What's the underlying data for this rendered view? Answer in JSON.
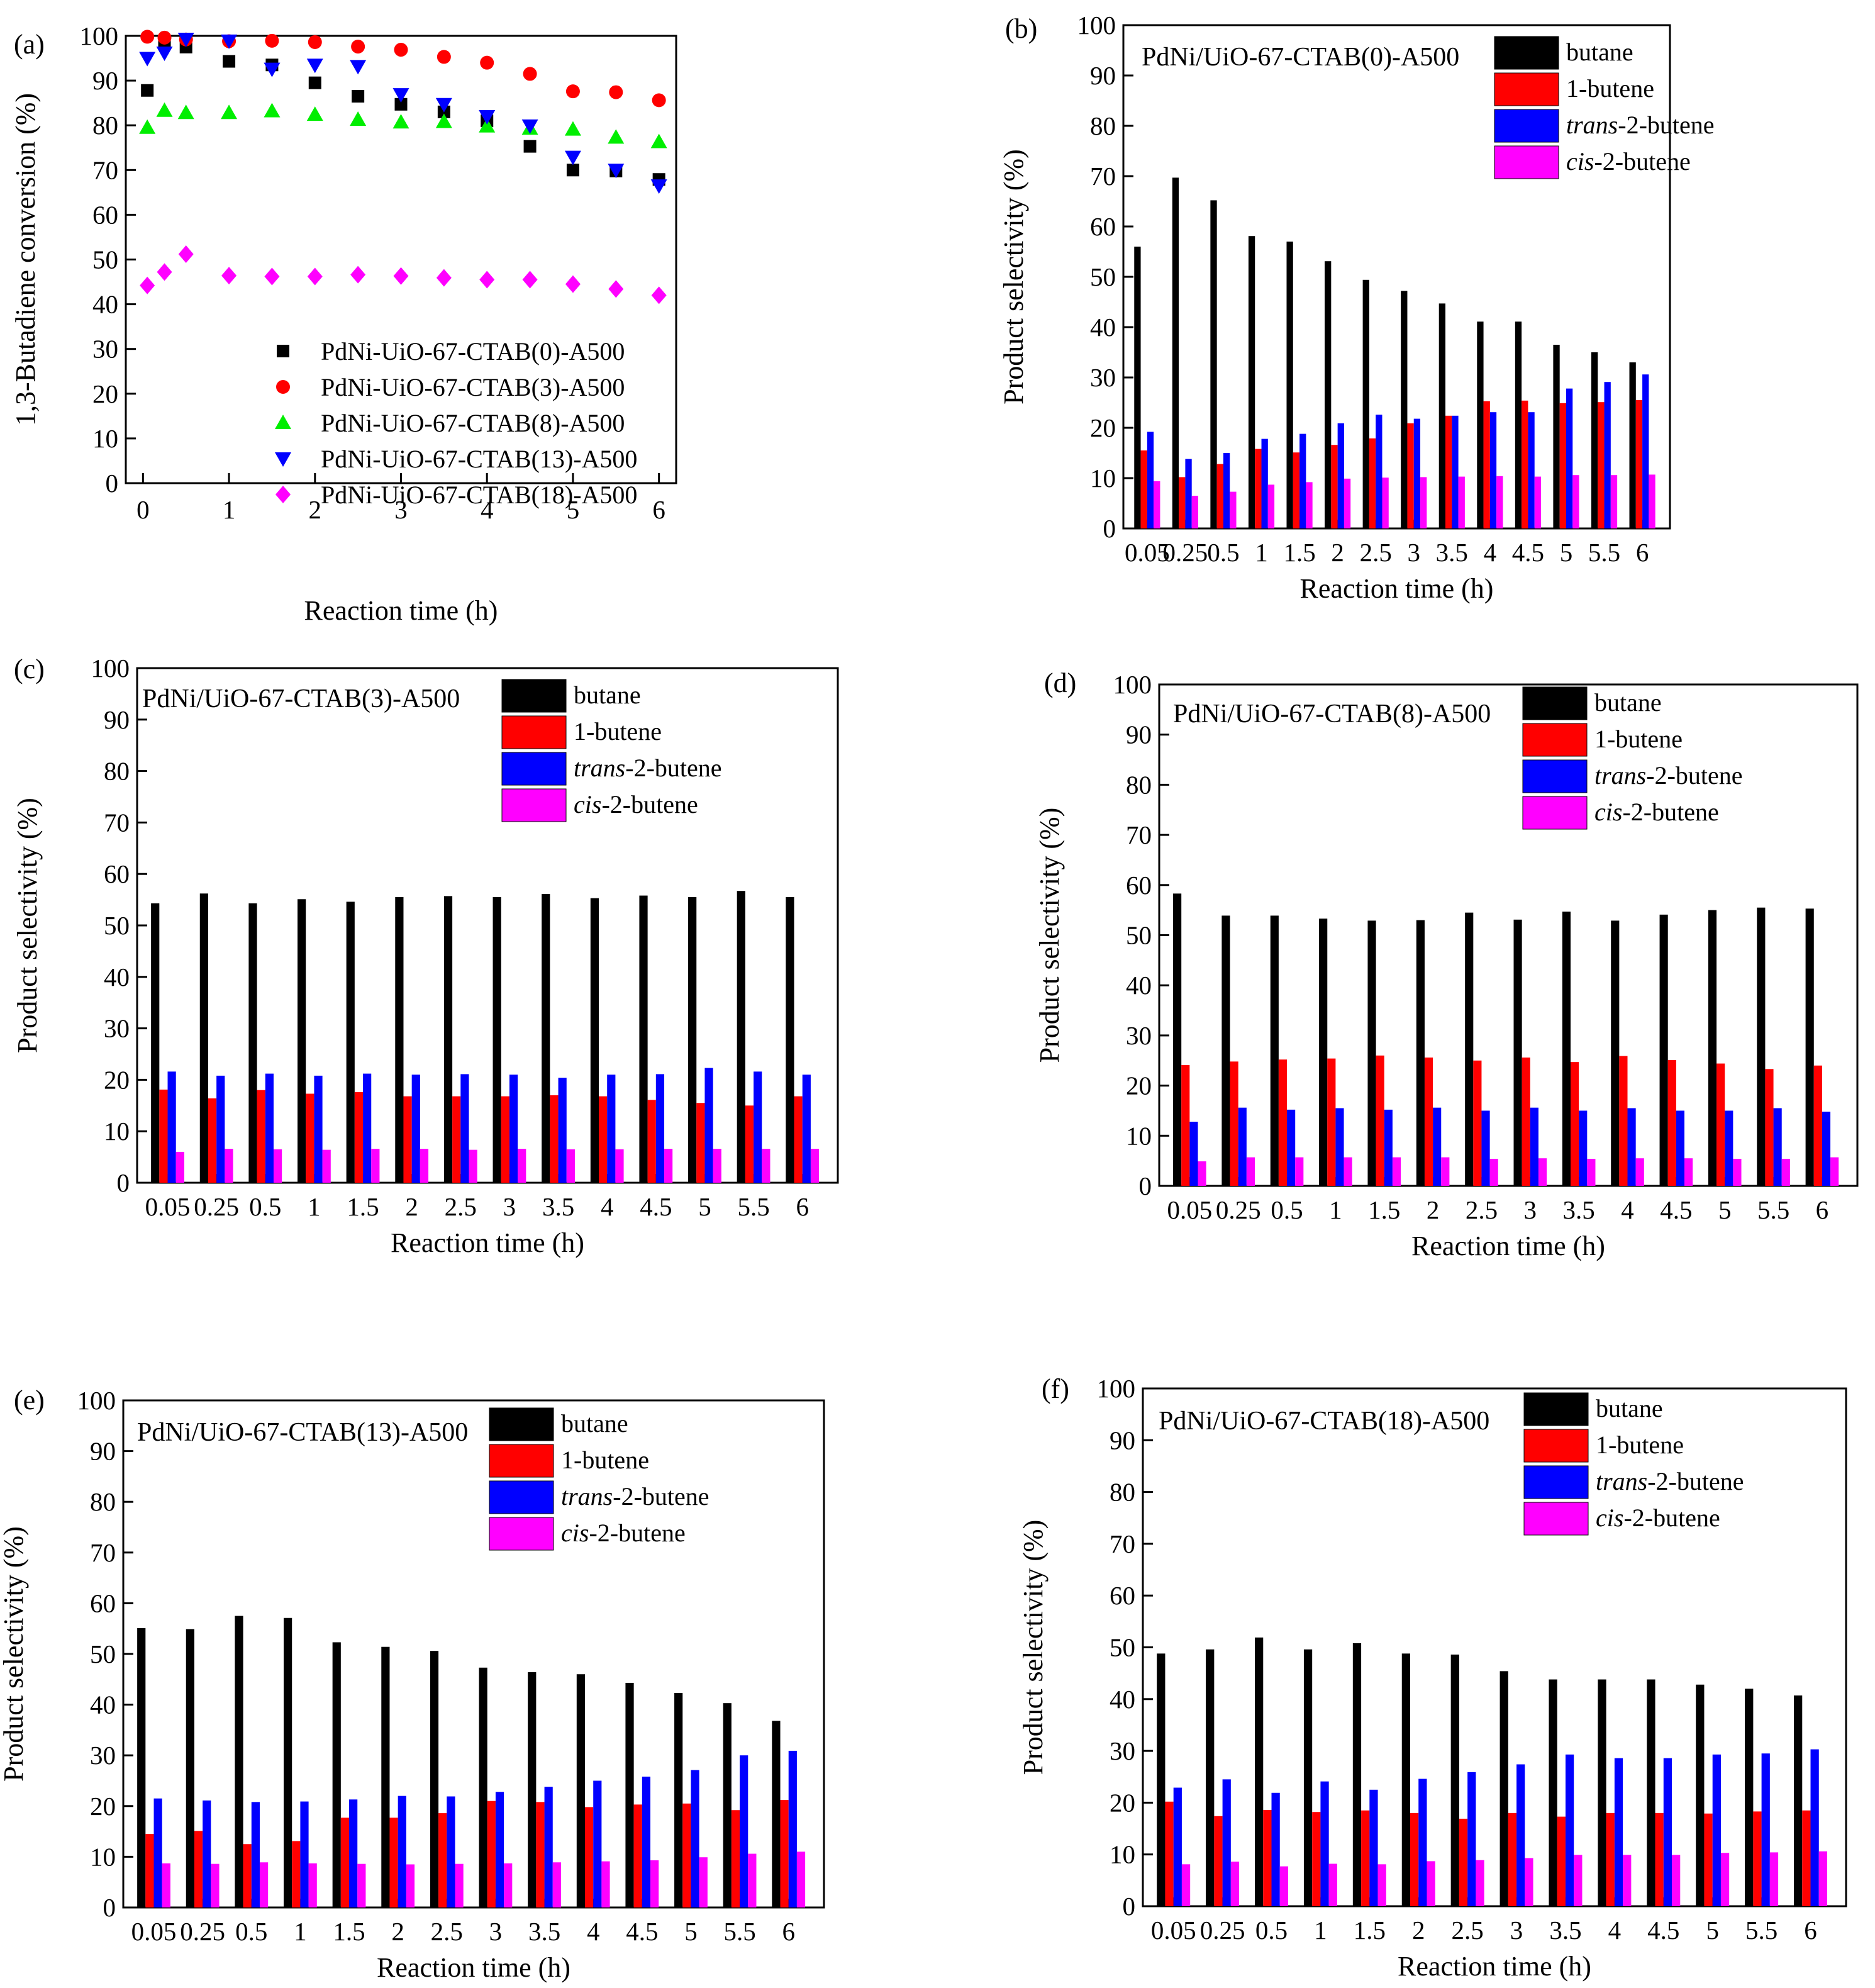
{
  "chart_data": [
    {
      "id": "a",
      "type": "scatter",
      "panel_label": "(a)",
      "title": "",
      "xlabel": "Reaction time (h)",
      "ylabel": "1,3-Butadiene conversion (%)",
      "xlim": [
        -0.2,
        6.2
      ],
      "ylim": [
        0,
        100
      ],
      "x_ticks": [
        "0",
        "1",
        "2",
        "3",
        "4",
        "5",
        "6"
      ],
      "y_ticks": [
        "0",
        "10",
        "20",
        "30",
        "40",
        "50",
        "60",
        "70",
        "80",
        "90",
        "100"
      ],
      "legend_position": "center",
      "x": [
        0.05,
        0.25,
        0.5,
        1,
        1.5,
        2,
        2.5,
        3,
        3.5,
        4,
        4.5,
        5,
        5.5,
        6
      ],
      "series": [
        {
          "name": "PdNi-UiO-67-CTAB(0)-A500",
          "marker": "square",
          "color": "#000000",
          "values": [
            87.8,
            98.8,
            97.5,
            94.3,
            93.5,
            89.5,
            86.5,
            84.7,
            83.0,
            81.0,
            75.3,
            70.0,
            69.8,
            67.9
          ]
        },
        {
          "name": "PdNi-UiO-67-CTAB(3)-A500",
          "marker": "circle",
          "color": "#ff0000",
          "values": [
            99.8,
            99.6,
            99.2,
            98.8,
            98.9,
            98.6,
            97.6,
            96.9,
            95.3,
            94.0,
            91.5,
            87.6,
            87.4,
            85.6
          ]
        },
        {
          "name": "PdNi-UiO-67-CTAB(8)-A500",
          "marker": "triangle-up",
          "color": "#00ee00",
          "values": [
            79.5,
            83.3,
            82.8,
            82.8,
            83.2,
            82.4,
            81.3,
            80.7,
            80.8,
            79.8,
            79.3,
            79.1,
            77.3,
            76.3
          ]
        },
        {
          "name": "PdNi-UiO-67-CTAB(13)-A500",
          "marker": "triangle-down",
          "color": "#0000ff",
          "values": [
            95.0,
            96.2,
            99.3,
            98.9,
            92.6,
            93.5,
            93.2,
            86.9,
            84.7,
            82.0,
            79.9,
            72.9,
            70.0,
            66.5
          ]
        },
        {
          "name": "PdNi-UiO-67-CTAB(18)-A500",
          "marker": "diamond",
          "color": "#ff00ff",
          "values": [
            44.2,
            47.2,
            51.2,
            46.4,
            46.2,
            46.2,
            46.6,
            46.3,
            45.9,
            45.5,
            45.5,
            44.5,
            43.4,
            42.0
          ]
        }
      ]
    },
    {
      "id": "b",
      "type": "bar",
      "panel_label": "(b)",
      "title": "PdNi/UiO-67-CTAB(0)-A500",
      "xlabel": "Reaction time (h)",
      "ylabel": "Product selectivity (%)",
      "ylim": [
        0,
        100
      ],
      "y_ticks": [
        "0",
        "10",
        "20",
        "30",
        "40",
        "50",
        "60",
        "70",
        "80",
        "90",
        "100"
      ],
      "categories": [
        "0.05",
        "0.25",
        "0.5",
        "1",
        "1.5",
        "2",
        "2.5",
        "3",
        "3.5",
        "4",
        "4.5",
        "5",
        "5.5",
        "6"
      ],
      "legend_position": "top-right",
      "series": [
        {
          "name": "butane",
          "color": "#000000",
          "values": [
            56,
            69.7,
            65.2,
            58.1,
            57.0,
            53.1,
            49.4,
            47.2,
            44.7,
            41.1,
            41.1,
            36.5,
            35.0,
            33.0
          ]
        },
        {
          "name": "1-butene",
          "color": "#ff0000",
          "values": [
            15.5,
            10.2,
            12.8,
            15.8,
            15.1,
            16.6,
            17.9,
            20.9,
            22.4,
            25.3,
            25.4,
            24.9,
            25.1,
            25.5
          ]
        },
        {
          "name": "trans-2-butene",
          "color": "#0000ff",
          "values": [
            19.2,
            13.8,
            15.0,
            17.8,
            18.8,
            20.9,
            22.6,
            21.8,
            22.4,
            23.1,
            23.1,
            27.8,
            29.1,
            30.6
          ]
        },
        {
          "name": "cis-2-butene",
          "color": "#ff00ff",
          "values": [
            9.4,
            6.5,
            7.3,
            8.7,
            9.2,
            9.9,
            10.1,
            10.2,
            10.3,
            10.4,
            10.3,
            10.6,
            10.6,
            10.7
          ]
        }
      ]
    },
    {
      "id": "c",
      "type": "bar",
      "panel_label": "(c)",
      "title": "PdNi/UiO-67-CTAB(3)-A500",
      "xlabel": "Reaction time (h)",
      "ylabel": "Product selectivity (%)",
      "ylim": [
        0,
        100
      ],
      "y_ticks": [
        "0",
        "10",
        "20",
        "30",
        "40",
        "50",
        "60",
        "70",
        "80",
        "90",
        "100"
      ],
      "categories": [
        "0.05",
        "0.25",
        "0.5",
        "1",
        "1.5",
        "2",
        "2.5",
        "3",
        "3.5",
        "4",
        "4.5",
        "5",
        "5.5",
        "6"
      ],
      "legend_position": "top-right",
      "series": [
        {
          "name": "butane",
          "color": "#000000",
          "values": [
            54.3,
            56.2,
            54.3,
            55.1,
            54.6,
            55.5,
            55.7,
            55.5,
            56.1,
            55.3,
            55.8,
            55.5,
            56.7,
            55.5
          ]
        },
        {
          "name": "1-butene",
          "color": "#ff0000",
          "values": [
            18.1,
            16.4,
            18.0,
            17.3,
            17.6,
            16.8,
            16.8,
            16.8,
            17.0,
            16.8,
            16.1,
            15.5,
            15.0,
            16.8
          ]
        },
        {
          "name": "trans-2-butene",
          "color": "#0000ff",
          "values": [
            21.6,
            20.8,
            21.2,
            20.8,
            21.2,
            21.0,
            21.1,
            21.0,
            20.4,
            21.0,
            21.1,
            22.3,
            21.6,
            21.0
          ]
        },
        {
          "name": "cis-2-butene",
          "color": "#ff00ff",
          "values": [
            6.0,
            6.6,
            6.5,
            6.4,
            6.6,
            6.6,
            6.4,
            6.6,
            6.5,
            6.5,
            6.6,
            6.6,
            6.6,
            6.6
          ]
        }
      ]
    },
    {
      "id": "d",
      "type": "bar",
      "panel_label": "(d)",
      "title": "PdNi/UiO-67-CTAB(8)-A500",
      "xlabel": "Reaction time (h)",
      "ylabel": "Product selectivity (%)",
      "ylim": [
        0,
        100
      ],
      "y_ticks": [
        "0",
        "10",
        "20",
        "30",
        "40",
        "50",
        "60",
        "70",
        "80",
        "90",
        "100"
      ],
      "categories": [
        "0.05",
        "0.25",
        "0.5",
        "1",
        "1.5",
        "2",
        "2.5",
        "3",
        "3.5",
        "4",
        "4.5",
        "5",
        "5.5",
        "6"
      ],
      "legend_position": "top-right",
      "series": [
        {
          "name": "butane",
          "color": "#000000",
          "values": [
            58.3,
            53.9,
            53.9,
            53.3,
            52.9,
            53.0,
            54.5,
            53.1,
            54.7,
            52.9,
            54.1,
            55.0,
            55.5,
            55.3
          ]
        },
        {
          "name": "1-butene",
          "color": "#ff0000",
          "values": [
            24.1,
            24.8,
            25.2,
            25.4,
            26.0,
            25.6,
            25.0,
            25.6,
            24.7,
            25.9,
            25.1,
            24.4,
            23.3,
            24.0
          ]
        },
        {
          "name": "trans-2-butene",
          "color": "#0000ff",
          "values": [
            12.8,
            15.6,
            15.2,
            15.5,
            15.2,
            15.6,
            15.0,
            15.6,
            15.0,
            15.5,
            15.0,
            15.0,
            15.5,
            14.8
          ]
        },
        {
          "name": "cis-2-butene",
          "color": "#ff00ff",
          "values": [
            4.9,
            5.7,
            5.7,
            5.7,
            5.7,
            5.7,
            5.4,
            5.5,
            5.4,
            5.5,
            5.5,
            5.4,
            5.4,
            5.7
          ]
        }
      ]
    },
    {
      "id": "e",
      "type": "bar",
      "panel_label": "(e)",
      "title": "PdNi/UiO-67-CTAB(13)-A500",
      "xlabel": "Reaction time (h)",
      "ylabel": "Product selectivity (%)",
      "ylim": [
        0,
        100
      ],
      "y_ticks": [
        "0",
        "10",
        "20",
        "30",
        "40",
        "50",
        "60",
        "70",
        "80",
        "90",
        "100"
      ],
      "categories": [
        "0.05",
        "0.25",
        "0.5",
        "1",
        "1.5",
        "2",
        "2.5",
        "3",
        "3.5",
        "4",
        "4.5",
        "5",
        "5.5",
        "6"
      ],
      "legend_position": "top-right",
      "series": [
        {
          "name": "butane",
          "color": "#000000",
          "values": [
            55.1,
            54.9,
            57.5,
            57.1,
            52.3,
            51.4,
            50.6,
            47.3,
            46.4,
            46.0,
            44.3,
            42.3,
            40.3,
            36.8
          ]
        },
        {
          "name": "1-butene",
          "color": "#ff0000",
          "values": [
            14.5,
            15.1,
            12.5,
            13.1,
            17.7,
            17.7,
            18.6,
            21.0,
            20.8,
            19.8,
            20.3,
            20.5,
            19.2,
            21.2
          ]
        },
        {
          "name": "trans-2-butene",
          "color": "#0000ff",
          "values": [
            21.5,
            21.1,
            20.8,
            20.9,
            21.3,
            22.0,
            21.9,
            22.8,
            23.8,
            25.0,
            25.8,
            27.1,
            30.0,
            30.9
          ]
        },
        {
          "name": "cis-2-butene",
          "color": "#ff00ff",
          "values": [
            8.7,
            8.6,
            8.9,
            8.7,
            8.6,
            8.5,
            8.6,
            8.7,
            8.9,
            9.1,
            9.3,
            9.9,
            10.6,
            11.0
          ]
        }
      ]
    },
    {
      "id": "f",
      "type": "bar",
      "panel_label": "(f)",
      "title": "PdNi/UiO-67-CTAB(18)-A500",
      "xlabel": "Reaction time (h)",
      "ylabel": "Product selectivity (%)",
      "ylim": [
        0,
        100
      ],
      "y_ticks": [
        "0",
        "10",
        "20",
        "30",
        "40",
        "50",
        "60",
        "70",
        "80",
        "90",
        "100"
      ],
      "categories": [
        "0.05",
        "0.25",
        "0.5",
        "1",
        "1.5",
        "2",
        "2.5",
        "3",
        "3.5",
        "4",
        "4.5",
        "5",
        "5.5",
        "6"
      ],
      "legend_position": "top-right",
      "series": [
        {
          "name": "butane",
          "color": "#000000",
          "values": [
            48.8,
            49.6,
            51.9,
            49.6,
            50.8,
            48.8,
            48.6,
            45.4,
            43.8,
            43.8,
            43.8,
            42.8,
            42.0,
            40.7
          ]
        },
        {
          "name": "1-butene",
          "color": "#ff0000",
          "values": [
            20.2,
            17.4,
            18.6,
            18.2,
            18.5,
            18.0,
            16.9,
            18.0,
            17.3,
            18.0,
            18.0,
            17.9,
            18.3,
            18.5
          ]
        },
        {
          "name": "trans-2-butene",
          "color": "#0000ff",
          "values": [
            22.9,
            24.5,
            21.9,
            24.1,
            22.5,
            24.6,
            25.9,
            27.4,
            29.3,
            28.6,
            28.6,
            29.3,
            29.5,
            30.3
          ]
        },
        {
          "name": "cis-2-butene",
          "color": "#ff00ff",
          "values": [
            8.1,
            8.6,
            7.7,
            8.2,
            8.1,
            8.7,
            8.9,
            9.3,
            9.9,
            9.9,
            9.9,
            10.3,
            10.4,
            10.6
          ]
        }
      ]
    }
  ]
}
